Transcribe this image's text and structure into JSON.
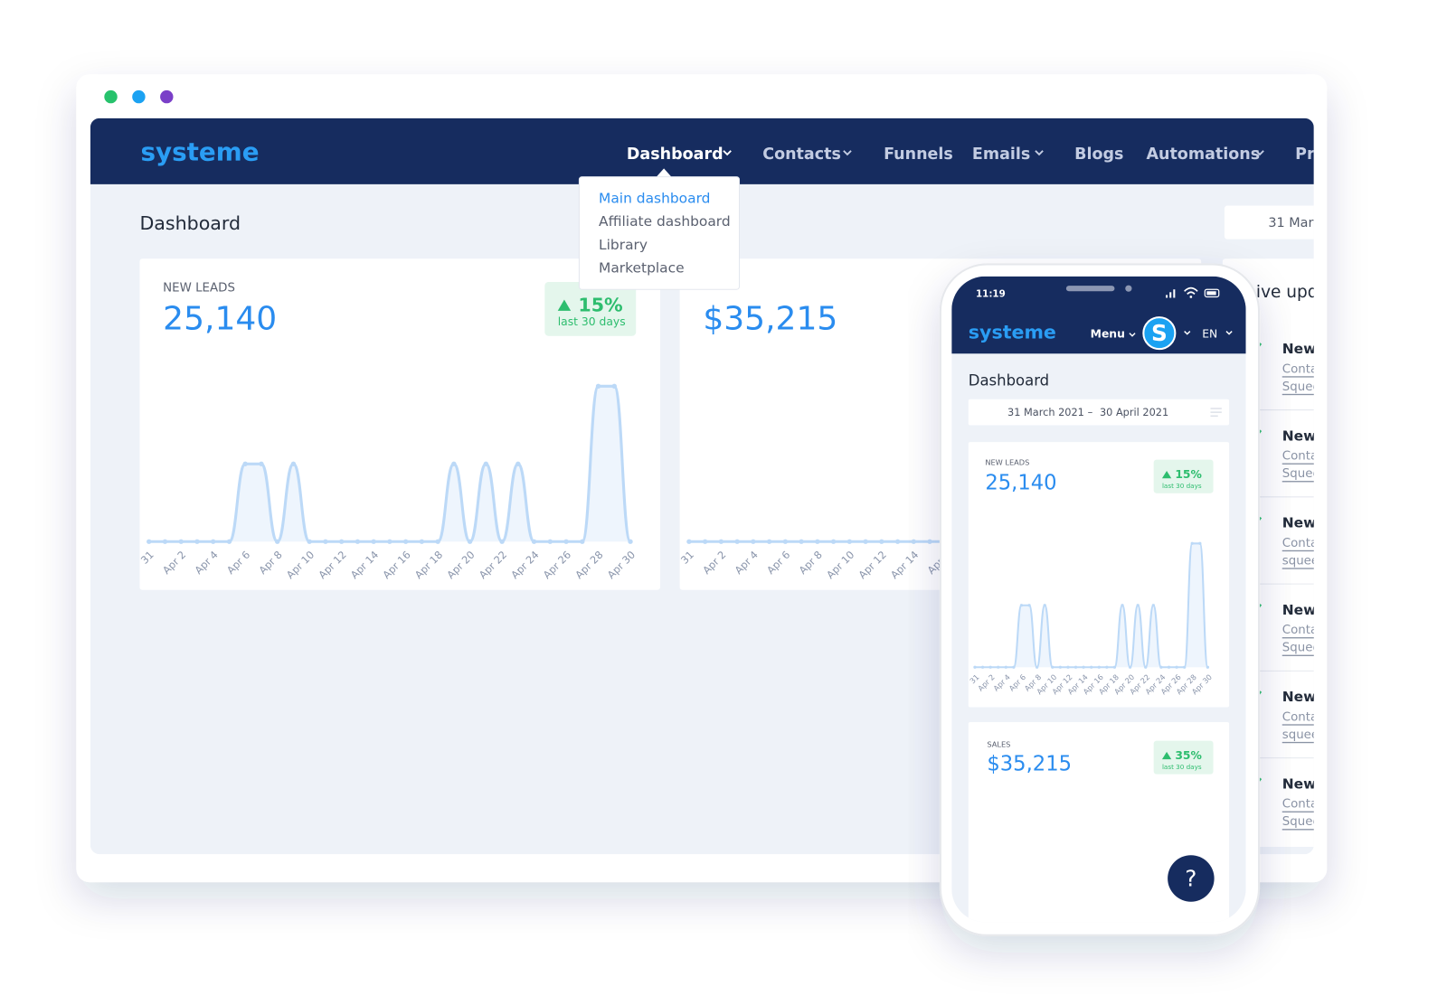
{
  "window": {
    "logo": "systeme",
    "nav": [
      "Dashboard",
      "Contacts",
      "Funnels",
      "Emails",
      "Blogs",
      "Automations",
      "Pr"
    ],
    "dropdown": [
      "Main dashboard",
      "Affiliate dashboard",
      "Library",
      "Marketplace"
    ],
    "page_title": "Dashboard",
    "date_range": "31 Marc",
    "leads_card": {
      "label": "NEW LEADS",
      "total": "25,140",
      "change": "15%",
      "period": "last 30 days"
    },
    "sales_card": {
      "total": "$35,215"
    },
    "feed": {
      "title": "ive upd",
      "items": [
        {
          "title": "New",
          "link": "Conta",
          "detail": "Squee"
        },
        {
          "title": "New",
          "link": "Conta",
          "detail": "Squee"
        },
        {
          "title": "New",
          "link": "Conta",
          "detail": "squee"
        },
        {
          "title": "New",
          "link": "Conta",
          "detail": "Squee"
        },
        {
          "title": "New",
          "link": "Conta",
          "detail": "squee"
        },
        {
          "title": "New",
          "link": "Conta",
          "detail": "Squee"
        }
      ]
    }
  },
  "leads_chart": {
    "type": "line",
    "categories": [
      "31",
      null,
      "Apr 2",
      null,
      "Apr 4",
      null,
      "Apr 6",
      null,
      "Apr 8",
      null,
      "Apr 10",
      null,
      "Apr 12",
      null,
      "Apr 14",
      null,
      "Apr 16",
      null,
      "Apr 18",
      null,
      "Apr 20",
      null,
      "Apr 22",
      null,
      "Apr 24",
      null,
      "Apr 26",
      null,
      "Apr 28",
      null,
      "Apr 30"
    ],
    "values": [
      0,
      0,
      0,
      0,
      0,
      0,
      1,
      1,
      0,
      1,
      0,
      0,
      0,
      0,
      0,
      0,
      0,
      0,
      0,
      1,
      0,
      1,
      0,
      1,
      0,
      0,
      0,
      0,
      2,
      2,
      0
    ],
    "color": "#bcd9f7"
  },
  "sales_chart": {
    "type": "line",
    "categories": [
      "31",
      null,
      "Apr 2",
      null,
      "Apr 4",
      null,
      "Apr 6",
      null,
      "Apr 8",
      null,
      "Apr 10",
      null,
      "Apr 12",
      null,
      "Apr 14",
      null,
      "Apr 1"
    ],
    "values": [
      0,
      0,
      0,
      0,
      0,
      0,
      0,
      0,
      0,
      0,
      0,
      0,
      0,
      0,
      0,
      0,
      0
    ],
    "color": "#bcd9f7"
  },
  "phone": {
    "time": "11:19",
    "logo": "systeme",
    "menu": "Menu",
    "avatar": "S",
    "language": "EN",
    "page_title": "Dashboard",
    "date_from": "31 March 2021",
    "date_separator": "–",
    "date_to": "30 April 2021",
    "leads_card": {
      "label": "NEW LEADS",
      "total": "25,140",
      "change": "15%",
      "period": "last 30 days"
    },
    "sales_card": {
      "label": "SALES",
      "total": "$35,215",
      "change": "35%",
      "period": "last 30 days"
    },
    "help": "?"
  }
}
